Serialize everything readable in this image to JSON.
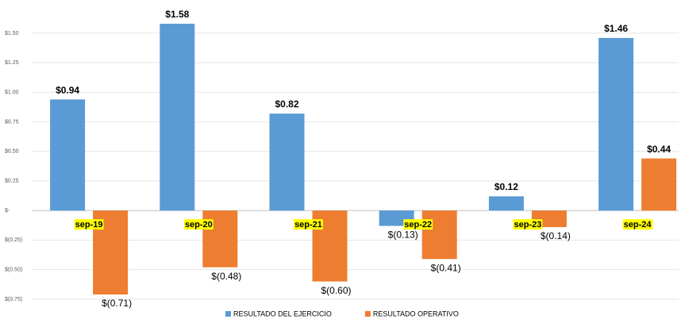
{
  "chart_data": {
    "type": "bar",
    "categories": [
      "sep-19",
      "sep-20",
      "sep-21",
      "sep-22",
      "sep-23",
      "sep-24"
    ],
    "series": [
      {
        "name": "RESULTADO DEL EJERCICIO",
        "color": "#5b9bd5",
        "values": [
          0.94,
          1.58,
          0.82,
          -0.13,
          0.12,
          1.46
        ],
        "value_labels": [
          "$0.94",
          "$1.58",
          "$0.82",
          "$(0.13)",
          "$0.12",
          "$1.46"
        ]
      },
      {
        "name": "RESULTADO OPERATIVO",
        "color": "#ed7d31",
        "values": [
          -0.71,
          -0.48,
          -0.6,
          -0.41,
          -0.14,
          0.44
        ],
        "value_labels": [
          "$(0.71)",
          "$(0.48)",
          "$(0.60)",
          "$(0.41)",
          "$(0.14)",
          "$0.44"
        ]
      }
    ],
    "ylim": [
      -0.75,
      1.6
    ],
    "yticks": [
      {
        "value": 1.5,
        "label": "$1.50"
      },
      {
        "value": 1.25,
        "label": "$1.25"
      },
      {
        "value": 1.0,
        "label": "$1.00"
      },
      {
        "value": 0.75,
        "label": "$0.75"
      },
      {
        "value": 0.5,
        "label": "$0.50"
      },
      {
        "value": 0.25,
        "label": "$0.25"
      },
      {
        "value": 0,
        "label": "$-"
      },
      {
        "value": -0.25,
        "label": "$(0.25)"
      },
      {
        "value": -0.5,
        "label": "$(0.50)"
      },
      {
        "value": -0.75,
        "label": "$(0.75)"
      }
    ],
    "grid": true,
    "legend": "bottom",
    "category_label_highlight": "#ffff00"
  }
}
